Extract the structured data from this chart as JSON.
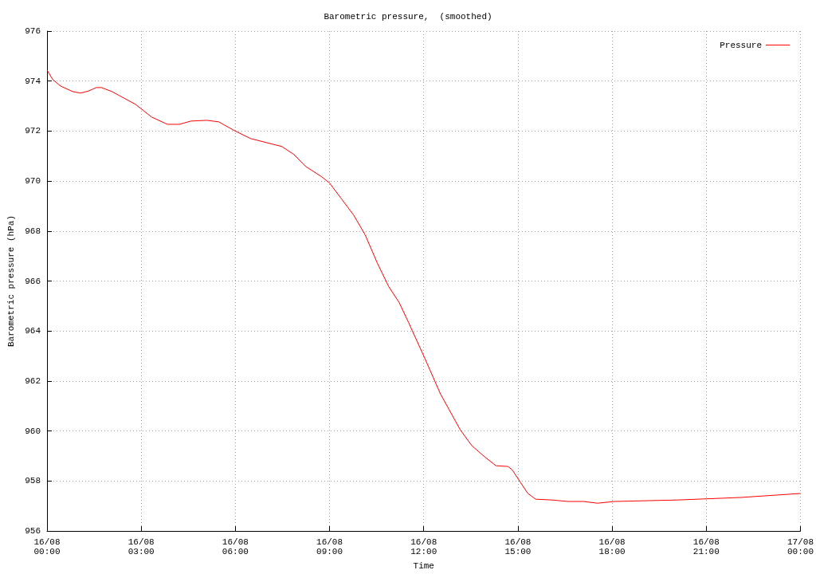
{
  "chart_data": {
    "type": "line",
    "title": "Barometric pressure,  (smoothed)",
    "xlabel": "Time",
    "ylabel": "Barometric pressure (hPa)",
    "series": [
      {
        "name": "Pressure",
        "color": "#ff0000",
        "x": [
          "--08-16T00:00",
          "--08-16T00:11",
          "--08-16T00:26",
          "--08-16T00:49",
          "--08-16T01:04",
          "--08-16T01:19",
          "--08-16T01:34",
          "--08-16T01:44",
          "--08-16T02:04",
          "--08-16T02:27",
          "--08-16T02:49",
          "--08-16T03:20",
          "--08-16T03:50",
          "--08-16T04:13",
          "--08-16T04:35",
          "--08-16T05:05",
          "--08-16T05:28",
          "--08-16T05:58",
          "--08-16T06:29",
          "--08-16T06:59",
          "--08-16T07:29",
          "--08-16T07:52",
          "--08-16T08:14",
          "--08-16T08:45",
          "--08-16T09:00",
          "--08-16T09:23",
          "--08-16T09:46",
          "--08-16T10:08",
          "--08-16T10:31",
          "--08-16T10:53",
          "--08-16T11:13",
          "--08-16T11:31",
          "--08-16T12:02",
          "--08-16T12:32",
          "--08-16T13:10",
          "--08-16T13:32",
          "--08-16T13:55",
          "--08-16T14:18",
          "--08-16T14:41",
          "--08-16T14:49",
          "--08-16T15:04",
          "--08-16T15:19",
          "--08-16T15:34",
          "--08-16T16:04",
          "--08-16T16:35",
          "--08-16T17:05",
          "--08-16T17:32",
          "--08-16T18:05",
          "--08-16T20:06",
          "--08-16T22:06",
          "--08-17T00:00"
        ],
        "values": [
          974.44,
          974.06,
          973.8,
          973.58,
          973.52,
          973.6,
          973.74,
          973.74,
          973.58,
          973.32,
          973.07,
          972.56,
          972.27,
          972.27,
          972.4,
          972.43,
          972.37,
          972.02,
          971.7,
          971.54,
          971.38,
          971.06,
          970.59,
          970.17,
          969.92,
          969.28,
          968.64,
          967.85,
          966.73,
          965.78,
          965.14,
          964.34,
          962.91,
          961.48,
          960.04,
          959.41,
          958.99,
          958.61,
          958.58,
          958.45,
          957.97,
          957.5,
          957.27,
          957.24,
          957.18,
          957.18,
          957.11,
          957.18,
          957.24,
          957.34,
          957.5
        ]
      }
    ],
    "xlim": [
      "--08-16T00:00",
      "--08-17T00:00"
    ],
    "xticks": [
      {
        "value": "--08-16T00:00",
        "label": "16/08\n00:00"
      },
      {
        "value": "--08-16T03:00",
        "label": "16/08\n03:00"
      },
      {
        "value": "--08-16T06:00",
        "label": "16/08\n06:00"
      },
      {
        "value": "--08-16T09:00",
        "label": "16/08\n09:00"
      },
      {
        "value": "--08-16T12:00",
        "label": "16/08\n12:00"
      },
      {
        "value": "--08-16T15:00",
        "label": "16/08\n15:00"
      },
      {
        "value": "--08-16T18:00",
        "label": "16/08\n18:00"
      },
      {
        "value": "--08-16T21:00",
        "label": "16/08\n21:00"
      },
      {
        "value": "--08-17T00:00",
        "label": "17/08\n00:00"
      }
    ],
    "ylim": [
      956,
      976
    ],
    "yticks": [
      956,
      958,
      960,
      962,
      964,
      966,
      968,
      970,
      972,
      974,
      976
    ],
    "grid": true,
    "legend": "top right",
    "marker": "none",
    "line_style": "solid"
  }
}
